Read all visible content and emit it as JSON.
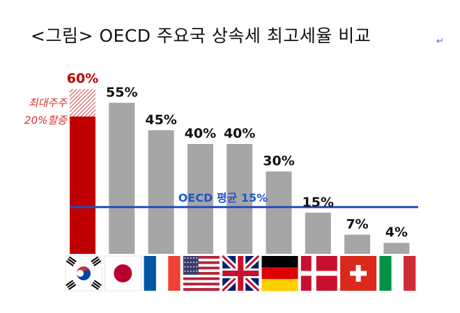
{
  "title": "<그림> OECD 주요국 상속세 최고세율 비교",
  "return_mark": "↵",
  "chart_data": {
    "type": "bar",
    "title": "<그림> OECD 주요국 상속세 최고세율 비교",
    "categories": [
      "한국",
      "일본",
      "프랑스",
      "미국",
      "영국",
      "독일",
      "덴마크",
      "스위스",
      "이탈리아"
    ],
    "values": [
      60,
      55,
      45,
      40,
      40,
      30,
      15,
      7,
      4
    ],
    "value_labels": [
      "60%",
      "55%",
      "45%",
      "40%",
      "40%",
      "30%",
      "15%",
      "7%",
      "4%"
    ],
    "korea_base_rate": 50,
    "korea_surcharge_note": [
      "최대주주",
      "20%할증"
    ],
    "average_line": {
      "value": 15,
      "label": "OECD 평균 15%"
    },
    "ylim": [
      0,
      60
    ],
    "grid": false,
    "colors": {
      "korea": "#c00000",
      "korea_label": "#c00000",
      "surcharge_hatch": "#d94040",
      "others": "#a6a6a6",
      "average_line": "#1f4fbd",
      "label": "#111111"
    }
  },
  "flags": [
    "south-korea-flag",
    "japan-flag",
    "france-flag",
    "usa-flag",
    "uk-flag",
    "germany-flag",
    "denmark-flag",
    "switzerland-flag",
    "italy-flag"
  ]
}
